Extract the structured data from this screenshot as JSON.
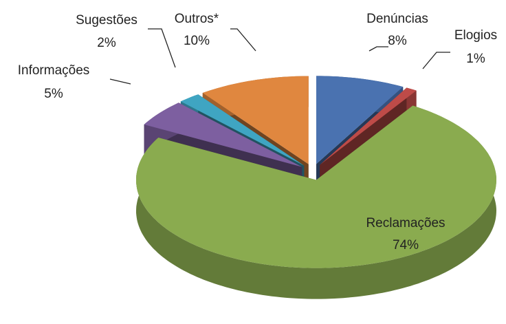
{
  "chart_data": {
    "type": "pie3d",
    "categories": [
      "Denúncias",
      "Elogios",
      "Reclamações",
      "Informações",
      "Sugestões",
      "Outros*"
    ],
    "values": [
      8,
      1,
      74,
      5,
      2,
      10
    ],
    "value_labels": [
      "8%",
      "1%",
      "74%",
      "5%",
      "2%",
      "10%"
    ],
    "colors": [
      "#4a72b0",
      "#be4b48",
      "#8aab4f",
      "#7d5fa0",
      "#3fa5c2",
      "#e0873f"
    ]
  }
}
